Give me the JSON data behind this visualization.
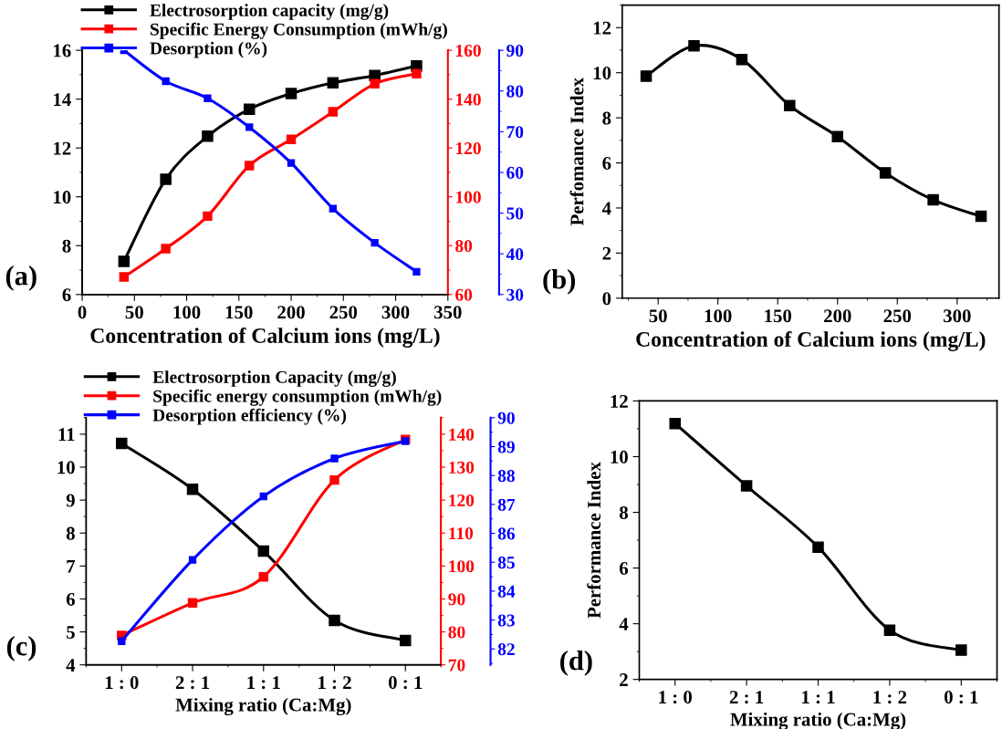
{
  "chart_data": [
    {
      "type": "line",
      "xlabel": "Concentration of Calcium ions (mg/L)",
      "x": [
        40,
        80,
        120,
        160,
        200,
        240,
        280,
        320
      ],
      "xlim": [
        0,
        350
      ],
      "xticks": [
        0,
        50,
        100,
        150,
        200,
        250,
        300,
        350
      ],
      "ylim": [
        6,
        16
      ],
      "yticks": [
        6,
        8,
        10,
        12,
        14,
        16
      ],
      "y2lim": [
        60,
        160
      ],
      "y2ticks": [
        60,
        80,
        100,
        120,
        140,
        160
      ],
      "y3lim": [
        30,
        90
      ],
      "y3ticks": [
        30,
        40,
        50,
        60,
        70,
        80,
        90
      ],
      "marker": "square",
      "legend": "top",
      "annotations": [
        "(a)"
      ],
      "series": [
        {
          "name": "Electrosorption capacity (mg/g)",
          "color": "#000000",
          "values": [
            7.36,
            10.72,
            12.48,
            13.59,
            14.23,
            14.67,
            14.97,
            15.36
          ]
        },
        {
          "name": "Specific Energy Consumption (mWh/g)",
          "color": "#ff0000",
          "axis": "y2",
          "values": [
            67.2,
            78.8,
            92.1,
            112.8,
            123.5,
            134.8,
            146.3,
            150.4
          ]
        },
        {
          "name": "Desorption (%)",
          "color": "#0000ff",
          "axis": "y3",
          "values": [
            90.0,
            82.4,
            78.2,
            71.1,
            62.3,
            51.1,
            42.7,
            35.6
          ]
        }
      ]
    },
    {
      "type": "line",
      "xlabel": "Concentration of Calcium ions (mg/L)",
      "ylabel": "Perfomance Index",
      "x": [
        40,
        80,
        120,
        160,
        200,
        240,
        280,
        320
      ],
      "xlim": [
        20,
        335
      ],
      "xticks": [
        50,
        100,
        150,
        200,
        250,
        300
      ],
      "ylim": [
        0,
        13
      ],
      "yticks": [
        0,
        2,
        4,
        6,
        8,
        10,
        12
      ],
      "marker": "square",
      "annotations": [
        "(b)"
      ],
      "series": [
        {
          "color": "#000000",
          "values": [
            9.85,
            11.19,
            10.59,
            8.54,
            7.17,
            5.56,
            4.36,
            3.63
          ]
        }
      ]
    },
    {
      "type": "line",
      "xlabel": "Mixing ratio (Ca:Mg)",
      "categories": [
        "1 : 0",
        "2 : 1",
        "1 : 1",
        "1 : 2",
        "0 : 1"
      ],
      "ylim": [
        4,
        11.5
      ],
      "yticks": [
        4,
        5,
        6,
        7,
        8,
        9,
        10,
        11
      ],
      "y2lim": [
        70,
        145
      ],
      "y2ticks": [
        70,
        80,
        90,
        100,
        110,
        120,
        130,
        140
      ],
      "y3lim": [
        81.45,
        90
      ],
      "y3ticks": [
        82,
        83,
        84,
        85,
        86,
        87,
        88,
        89,
        90
      ],
      "marker": "square",
      "legend": "top",
      "annotations": [
        "(c)"
      ],
      "series": [
        {
          "name": "Electrosorption Capacity (mg/g)",
          "color": "#000000",
          "values": [
            10.72,
            9.33,
            7.45,
            5.35,
            4.74
          ]
        },
        {
          "name": "Specific energy consumption (mWh/g)",
          "color": "#ff0000",
          "axis": "y2",
          "values": [
            78.9,
            88.8,
            96.7,
            126.1,
            138.4
          ]
        },
        {
          "name": "Desorption efficiency (%)",
          "color": "#0000ff",
          "axis": "y3",
          "values": [
            82.27,
            85.08,
            87.28,
            88.59,
            89.19
          ]
        }
      ]
    },
    {
      "type": "line",
      "xlabel": "Mixing ratio (Ca:Mg)",
      "ylabel": "Performance Index",
      "categories": [
        "1 : 0",
        "2 : 1",
        "1 : 1",
        "1 : 2",
        "0 : 1"
      ],
      "ylim": [
        2,
        12
      ],
      "yticks": [
        2,
        4,
        6,
        8,
        10,
        12
      ],
      "marker": "square",
      "annotations": [
        "(d)"
      ],
      "series": [
        {
          "color": "#000000",
          "values": [
            11.19,
            8.95,
            6.75,
            3.77,
            3.05
          ]
        }
      ]
    }
  ]
}
